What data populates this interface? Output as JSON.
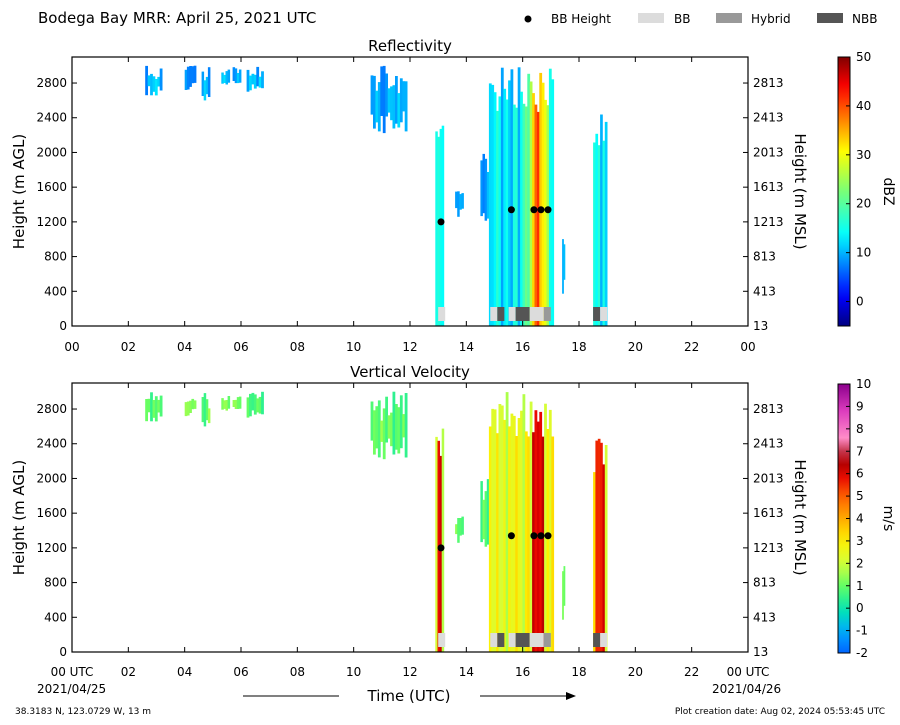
{
  "title": "Bodega Bay MRR:  April 25, 2021 UTC",
  "legend": [
    {
      "label": "BB Height",
      "kind": "dot",
      "color": "#000000"
    },
    {
      "label": "BB",
      "kind": "box",
      "color": "#dcdcdc"
    },
    {
      "label": "Hybrid",
      "kind": "box",
      "color": "#999999"
    },
    {
      "label": "NBB",
      "kind": "box",
      "color": "#555555"
    }
  ],
  "xlabel": "Time (UTC)",
  "date_start": "2021/04/25",
  "date_end": "2021/04/26",
  "location": "38.3183 N, 123.0729 W, 13 m",
  "creation_date": "Plot creation date: Aug 02, 2024 05:53:45 UTC",
  "chart_data": [
    {
      "type": "heatmap",
      "title": "Reflectivity",
      "ylabel": "Height (m AGL)",
      "ylabel_right": "Height (m MSL)",
      "xlim": [
        0,
        24
      ],
      "ylim": [
        0,
        3100
      ],
      "x_tick_labels": [
        "00",
        "02",
        "04",
        "06",
        "08",
        "10",
        "12",
        "14",
        "16",
        "18",
        "20",
        "22",
        "00"
      ],
      "y_ticks": [
        0,
        400,
        800,
        1200,
        1600,
        2000,
        2400,
        2800
      ],
      "y_ticks_right": [
        "13",
        "413",
        "813",
        "1213",
        "1613",
        "2013",
        "2413",
        "2813"
      ],
      "colorbar": {
        "label": "dBZ",
        "min": -5,
        "max": 50,
        "ticks": [
          0,
          10,
          20,
          30,
          40,
          50
        ]
      },
      "bb_heights": [
        {
          "x": 13.1,
          "y": 1200
        },
        {
          "x": 15.6,
          "y": 1340
        },
        {
          "x": 16.4,
          "y": 1340
        },
        {
          "x": 16.65,
          "y": 1340
        },
        {
          "x": 16.9,
          "y": 1340
        }
      ],
      "bb_types": [
        {
          "start": 13.0,
          "end": 13.25,
          "type": "BB"
        },
        {
          "start": 14.85,
          "end": 15.1,
          "type": "BB"
        },
        {
          "start": 15.1,
          "end": 15.35,
          "type": "NBB"
        },
        {
          "start": 15.5,
          "end": 15.75,
          "type": "BB"
        },
        {
          "start": 15.75,
          "end": 16.25,
          "type": "NBB"
        },
        {
          "start": 16.25,
          "end": 16.75,
          "type": "BB"
        },
        {
          "start": 16.75,
          "end": 17.0,
          "type": "Hybrid"
        },
        {
          "start": 18.5,
          "end": 18.75,
          "type": "NBB"
        },
        {
          "start": 18.75,
          "end": 19.0,
          "type": "BB"
        }
      ]
    },
    {
      "type": "heatmap",
      "title": "Vertical Velocity",
      "ylabel": "Height (m AGL)",
      "ylabel_right": "Height (m MSL)",
      "xlim": [
        0,
        24
      ],
      "ylim": [
        0,
        3100
      ],
      "x_tick_labels": [
        "00 UTC",
        "02",
        "04",
        "06",
        "08",
        "10",
        "12",
        "14",
        "16",
        "18",
        "20",
        "22",
        "00 UTC"
      ],
      "y_ticks": [
        0,
        400,
        800,
        1200,
        1600,
        2000,
        2400,
        2800
      ],
      "y_ticks_right": [
        "13",
        "413",
        "813",
        "1213",
        "1613",
        "2013",
        "2413",
        "2813"
      ],
      "colorbar": {
        "label": "m/s",
        "min": -2,
        "max": 10,
        "ticks": [
          -2,
          -1,
          0,
          1,
          2,
          3,
          4,
          5,
          6,
          7,
          8,
          9,
          10
        ]
      },
      "bb_heights": [
        {
          "x": 13.1,
          "y": 1200
        },
        {
          "x": 15.6,
          "y": 1340
        },
        {
          "x": 16.4,
          "y": 1340
        },
        {
          "x": 16.65,
          "y": 1340
        },
        {
          "x": 16.9,
          "y": 1340
        }
      ],
      "bb_types": [
        {
          "start": 13.0,
          "end": 13.25,
          "type": "BB"
        },
        {
          "start": 14.85,
          "end": 15.1,
          "type": "BB"
        },
        {
          "start": 15.1,
          "end": 15.35,
          "type": "NBB"
        },
        {
          "start": 15.5,
          "end": 15.75,
          "type": "BB"
        },
        {
          "start": 15.75,
          "end": 16.25,
          "type": "NBB"
        },
        {
          "start": 16.25,
          "end": 16.75,
          "type": "BB"
        },
        {
          "start": 16.75,
          "end": 17.0,
          "type": "Hybrid"
        },
        {
          "start": 18.5,
          "end": 18.75,
          "type": "NBB"
        },
        {
          "start": 18.75,
          "end": 19.0,
          "type": "BB"
        }
      ]
    }
  ],
  "echo_regions": [
    {
      "x0": 2.6,
      "x1": 3.2,
      "y0": 2650,
      "y1": 3000
    },
    {
      "x0": 4.0,
      "x1": 4.4,
      "y0": 2700,
      "y1": 3000
    },
    {
      "x0": 4.6,
      "x1": 4.9,
      "y0": 2550,
      "y1": 3000
    },
    {
      "x0": 5.3,
      "x1": 5.6,
      "y0": 2750,
      "y1": 3000
    },
    {
      "x0": 5.7,
      "x1": 6.0,
      "y0": 2750,
      "y1": 3000
    },
    {
      "x0": 6.2,
      "x1": 6.8,
      "y0": 2700,
      "y1": 3000
    },
    {
      "x0": 10.6,
      "x1": 11.9,
      "y0": 2200,
      "y1": 3000
    },
    {
      "x0": 12.9,
      "x1": 13.2,
      "y0": 0,
      "y1": 2600
    },
    {
      "x0": 13.6,
      "x1": 13.9,
      "y0": 1250,
      "y1": 1600
    },
    {
      "x0": 14.5,
      "x1": 14.8,
      "y0": 1200,
      "y1": 2000
    },
    {
      "x0": 14.8,
      "x1": 17.1,
      "y0": 0,
      "y1": 3000
    },
    {
      "x0": 17.4,
      "x1": 17.5,
      "y0": 300,
      "y1": 1200
    },
    {
      "x0": 18.5,
      "x1": 19.0,
      "y0": 0,
      "y1": 2500
    }
  ]
}
